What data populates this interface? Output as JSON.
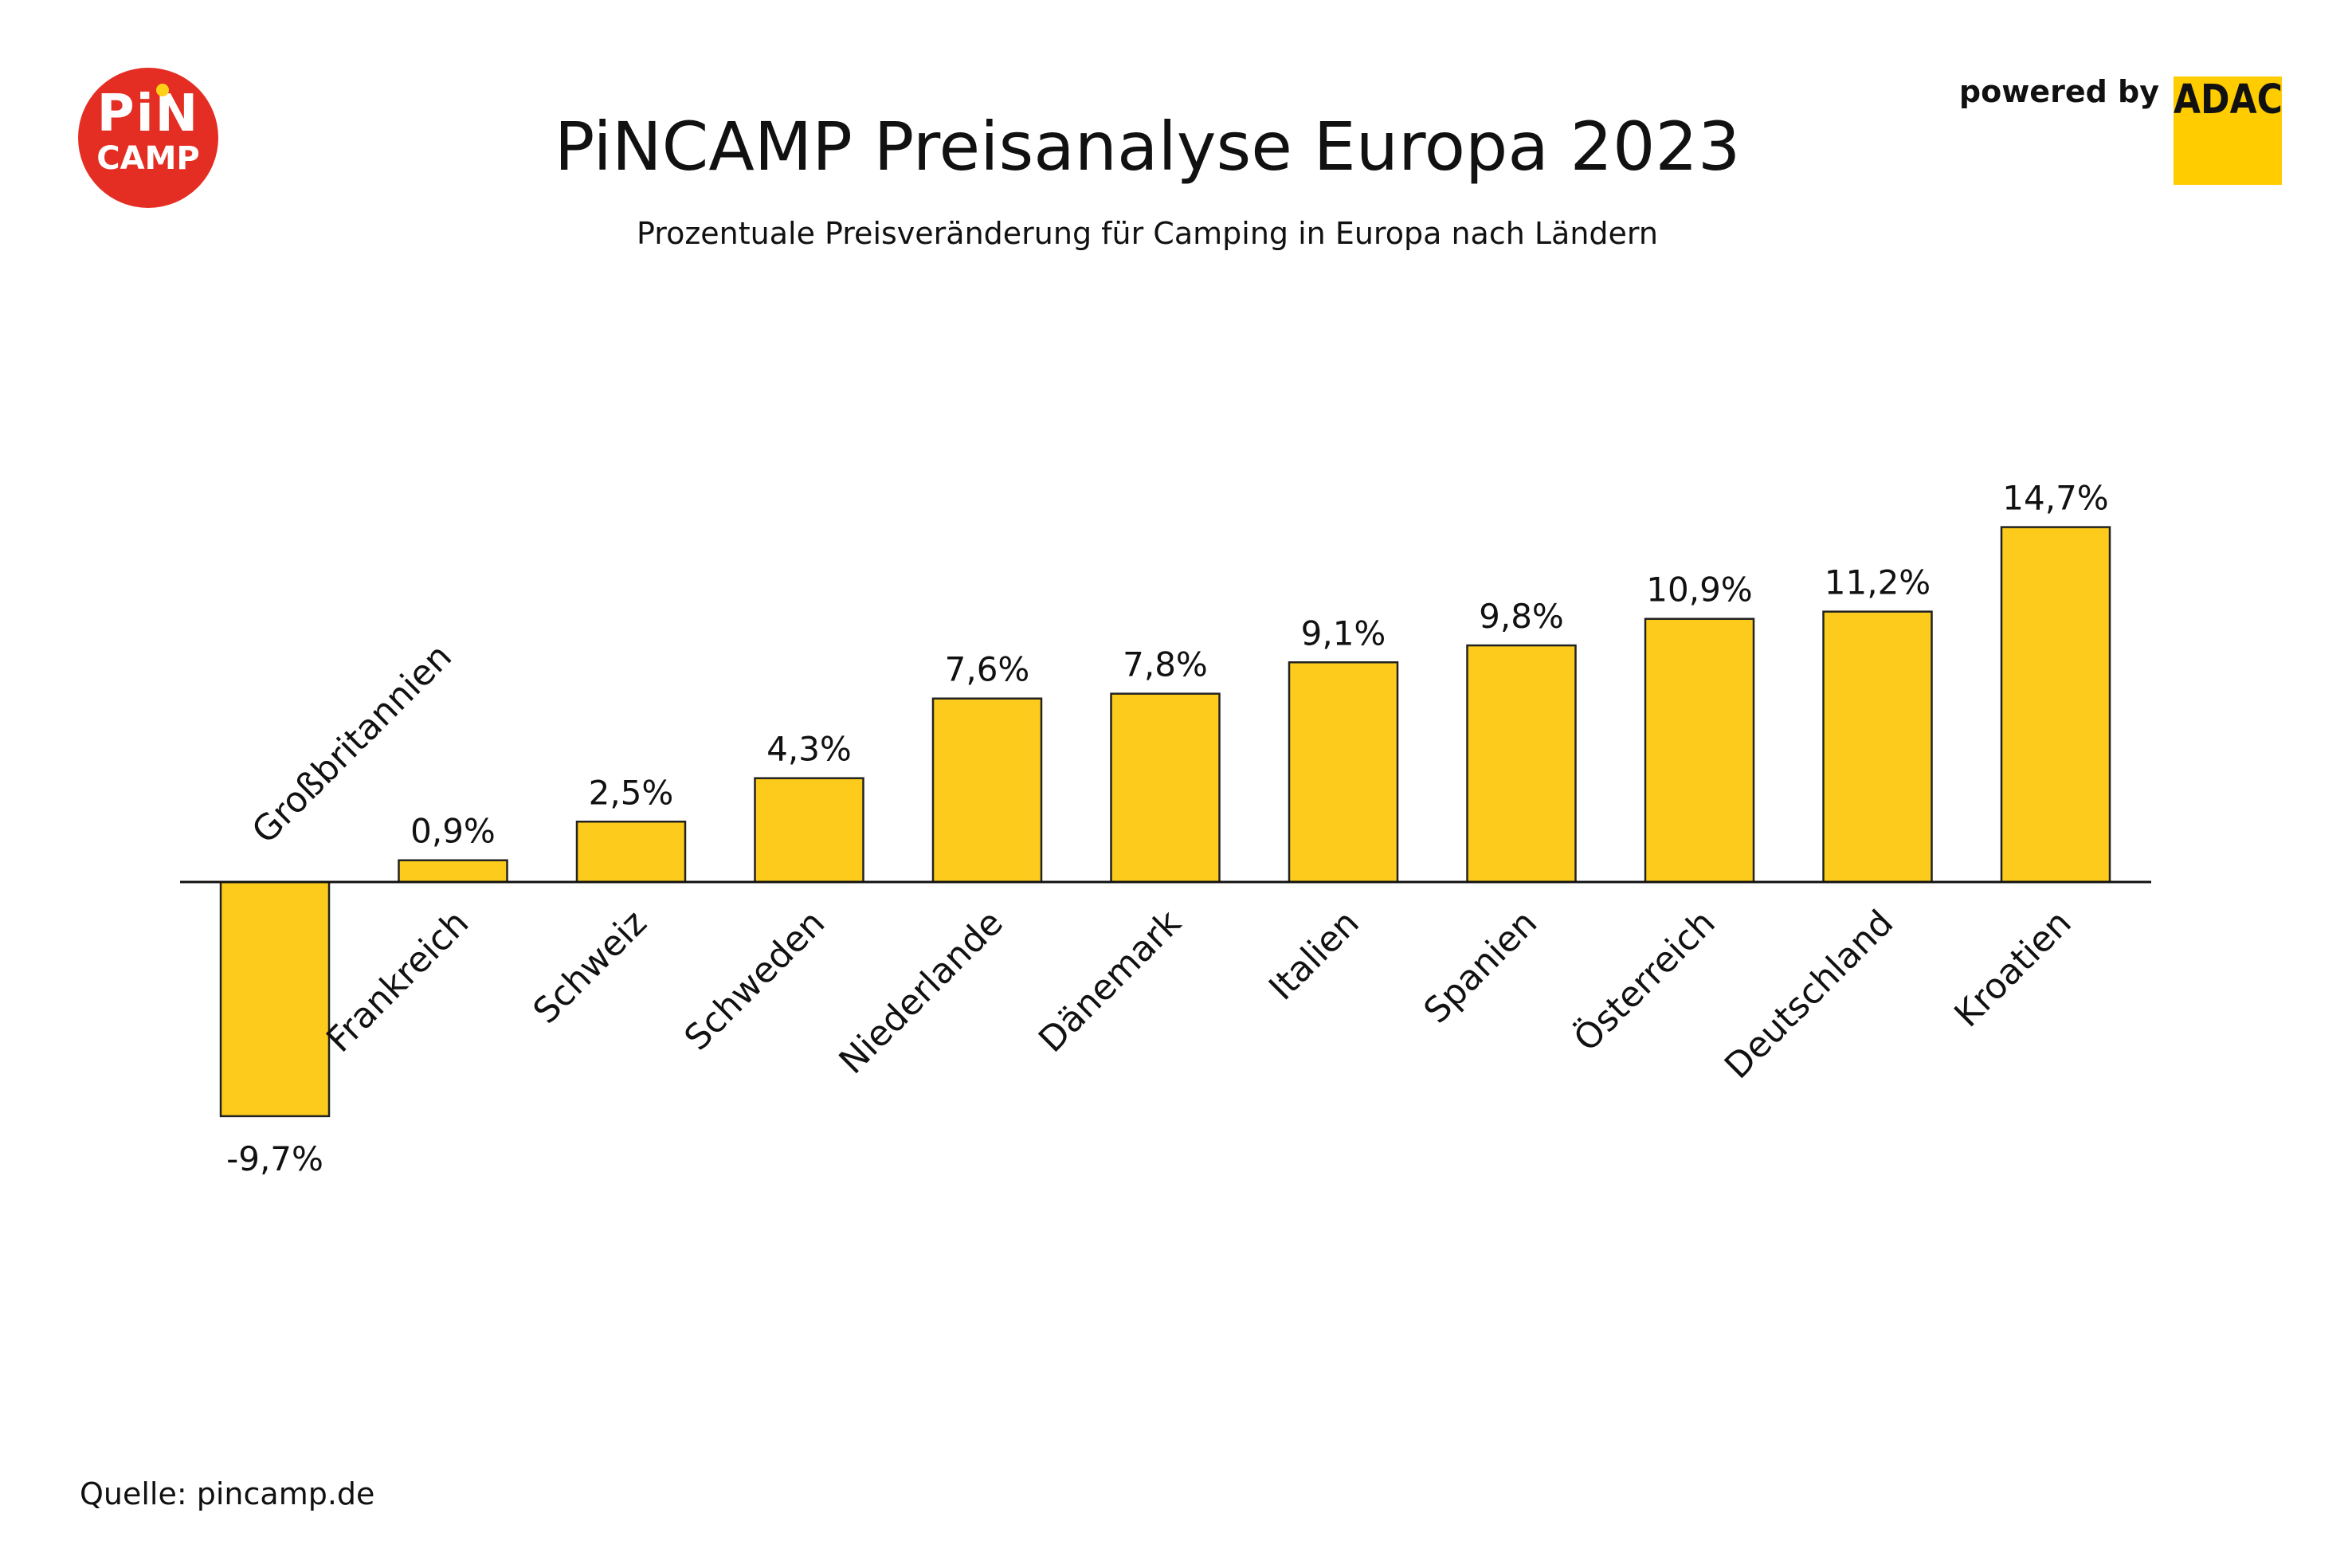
{
  "header": {
    "title": "PiNCAMP Preisanalyse Europa 2023",
    "subtitle": "Prozentuale Preisveränderung für Camping in Europa nach Ländern",
    "powered_by": "powered by",
    "logo_left_text_1": "PiN",
    "logo_left_text_2": "CAMP",
    "logo_right_text": "ADAC"
  },
  "footer": {
    "source": "Quelle: pincamp.de"
  },
  "colors": {
    "bar": "#fccb1b",
    "bar_stroke": "#222222",
    "logo_red": "#e42e23",
    "adac_yellow": "#ffcc00"
  },
  "chart_data": {
    "type": "bar",
    "title": "PiNCAMP Preisanalyse Europa 2023",
    "subtitle": "Prozentuale Preisveränderung für Camping in Europa nach Ländern",
    "categories": [
      "Großbritannien",
      "Frankreich",
      "Schweiz",
      "Schweden",
      "Niederlande",
      "Dänemark",
      "Italien",
      "Spanien",
      "Österreich",
      "Deutschland",
      "Kroatien"
    ],
    "values": [
      -9.7,
      0.9,
      2.5,
      4.3,
      7.6,
      7.8,
      9.1,
      9.8,
      10.9,
      11.2,
      14.7
    ],
    "value_labels": [
      "-9,7%",
      "0,9%",
      "2,5%",
      "4,3%",
      "7,6%",
      "7,8%",
      "9,1%",
      "9,8%",
      "10,9%",
      "11,2%",
      "14,7%"
    ],
    "unit": "%",
    "ylim": [
      -9.7,
      14.7
    ],
    "grid": false,
    "legend": "none"
  }
}
